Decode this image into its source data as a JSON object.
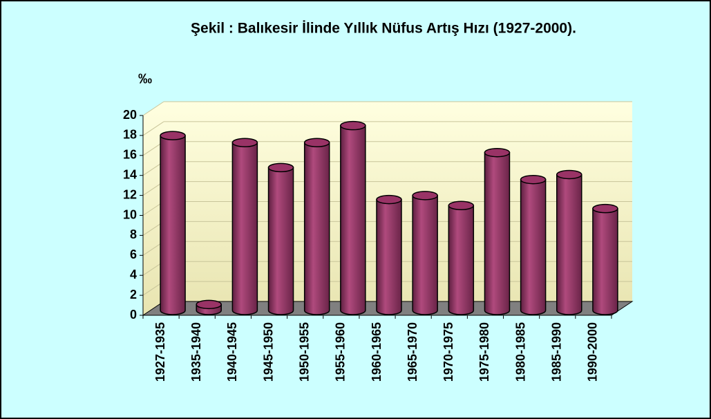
{
  "chart_data": {
    "type": "bar",
    "title": "Şekil : Balıkesir İlinde Yıllık Nüfus Artış Hızı (1927-2000).",
    "y_label": "‰",
    "categories": [
      "1927-1935",
      "1935-1940",
      "1940-1945",
      "1945-1950",
      "1950-1955",
      "1955-1960",
      "1960-1965",
      "1965-1970",
      "1970-1975",
      "1975-1980",
      "1980-1985",
      "1985-1990",
      "1990-2000"
    ],
    "values": [
      17.5,
      0.6,
      16.8,
      14.3,
      16.8,
      18.5,
      11.1,
      11.5,
      10.5,
      15.8,
      13.1,
      13.6,
      10.2
    ],
    "color": "#993366",
    "ylim": [
      0,
      20
    ],
    "yticks": [
      0,
      2,
      4,
      6,
      8,
      10,
      12,
      14,
      16,
      18,
      20
    ],
    "grid": true
  }
}
